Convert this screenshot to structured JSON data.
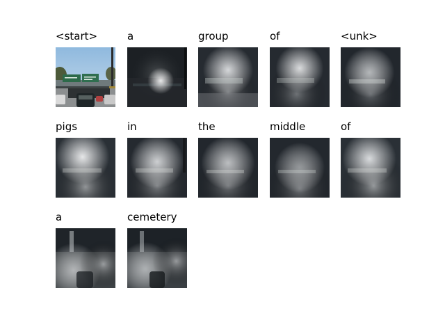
{
  "panels": [
    {
      "word": "<start>",
      "kind": "photo"
    },
    {
      "word": "a",
      "kind": "attn",
      "focus": "spot"
    },
    {
      "word": "group",
      "kind": "attn",
      "focus": "sign"
    },
    {
      "word": "of",
      "kind": "attn",
      "focus": "sign"
    },
    {
      "word": "<unk>",
      "kind": "attn",
      "focus": "soft"
    },
    {
      "word": "pigs",
      "kind": "attn",
      "focus": "sign"
    },
    {
      "word": "in",
      "kind": "attn",
      "focus": "soft"
    },
    {
      "word": "the",
      "kind": "attn",
      "focus": "soft"
    },
    {
      "word": "middle",
      "kind": "attn",
      "focus": "low"
    },
    {
      "word": "of",
      "kind": "attn",
      "focus": "sign"
    },
    {
      "word": "a",
      "kind": "attn",
      "focus": "road"
    },
    {
      "word": "cemetery",
      "kind": "attn",
      "focus": "road"
    }
  ]
}
